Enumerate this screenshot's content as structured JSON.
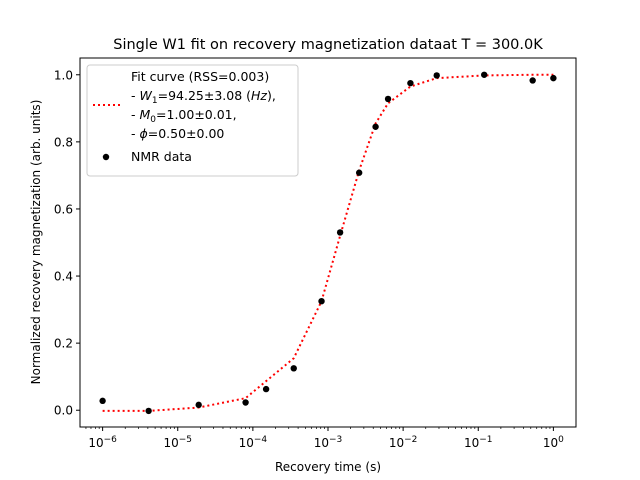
{
  "chart_data": {
    "type": "scatter",
    "title": "Single W1 fit on recovery magnetization dataat T = 300.0K",
    "xlabel": "Recovery time (s)",
    "ylabel": "Normalized recovery magnetization (arb. units)",
    "xscale": "log",
    "xlim": [
      5e-07,
      2
    ],
    "ylim": [
      -0.05,
      1.05
    ],
    "x_ticks": [
      1e-06,
      1e-05,
      0.0001,
      0.001,
      0.01,
      0.1,
      1
    ],
    "x_tick_labels": [
      {
        "base": "10",
        "exp": "−6"
      },
      {
        "base": "10",
        "exp": "−5"
      },
      {
        "base": "10",
        "exp": "−4"
      },
      {
        "base": "10",
        "exp": "−3"
      },
      {
        "base": "10",
        "exp": "−2"
      },
      {
        "base": "10",
        "exp": "−1"
      },
      {
        "base": "10",
        "exp": "0"
      }
    ],
    "y_ticks": [
      0.0,
      0.2,
      0.4,
      0.6,
      0.8,
      1.0
    ],
    "y_tick_labels": [
      "0.0",
      "0.2",
      "0.4",
      "0.6",
      "0.8",
      "1.0"
    ],
    "grid": false,
    "legend_position": "upper-left",
    "series": [
      {
        "kind": "line",
        "style": "dotted",
        "color": "#ff0000",
        "x": [
          1e-06,
          4.1e-06,
          1.9e-05,
          8e-05,
          0.00035,
          0.00082,
          0.00145,
          0.0026,
          0.0043,
          0.0063,
          0.0125,
          0.028,
          0.12,
          0.53,
          1
        ],
        "y": [
          -0.002,
          -0.002,
          0.008,
          0.036,
          0.155,
          0.325,
          0.52,
          0.715,
          0.855,
          0.915,
          0.965,
          0.99,
          0.998,
          1.0,
          1.0
        ]
      },
      {
        "kind": "scatter",
        "color": "#000000",
        "name": "NMR data",
        "x": [
          1e-06,
          4.1e-06,
          1.9e-05,
          8e-05,
          0.00015,
          0.00035,
          0.00082,
          0.00145,
          0.0026,
          0.0043,
          0.0063,
          0.0125,
          0.028,
          0.12,
          0.53,
          1
        ],
        "y": [
          0.028,
          -0.002,
          0.016,
          0.023,
          0.063,
          0.125,
          0.325,
          0.53,
          0.708,
          0.845,
          0.928,
          0.975,
          0.998,
          1.0,
          0.983,
          0.99
        ]
      }
    ],
    "legend": {
      "fit_lines": [
        {
          "text": "Fit curve (RSS=0.003)"
        },
        {
          "pre": "- ",
          "sym": "W",
          "sub": "1",
          "post": "=94.25±3.08 (",
          "ital": "Hz",
          "tail": "),"
        },
        {
          "pre": "- ",
          "sym": "M",
          "sub": "0",
          "post": "=1.00±0.01,"
        },
        {
          "pre": "- ",
          "sym": "ϕ",
          "post": "=0.50±0.00"
        }
      ],
      "data_label": "NMR data"
    }
  }
}
